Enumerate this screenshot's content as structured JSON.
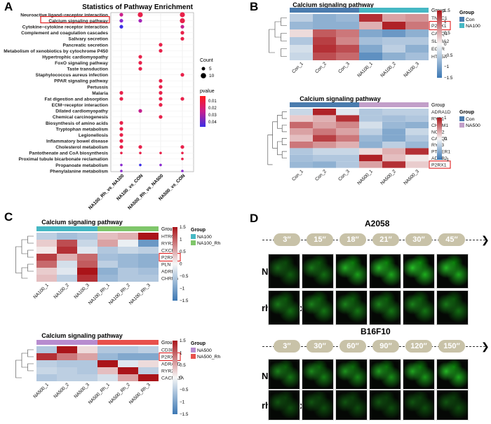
{
  "panels": {
    "A": "A",
    "B": "B",
    "C": "C",
    "D": "D"
  },
  "panelA": {
    "title": "Statistics of Pathway Enrichment",
    "pathways": [
      "Neuroactive ligand−receptor interaction",
      "Calcium signaling pathway",
      "Cytokine−cytokine receptor interaction",
      "Complement and coagulation cascades",
      "Salivary secretion",
      "Pancreatic secretion",
      "Metabolism of xenobiotics by cytochrome P450",
      "Hypertrophic cardiomyopathy",
      "FoxO signaling pathway",
      "Taste transduction",
      "Staphylococcus aureus infection",
      "PPAR signaling pathway",
      "Pertussis",
      "Malaria",
      "Fat digestion and absorption",
      "ECM−receptor interaction",
      "Dilated cardiomyopathy",
      "Chemical carcinogenesis",
      "Biosynthesis of amino acids",
      "Tryptophan metabolism",
      "Legionellosis",
      "Inflammatory bowel disease",
      "Cholesterol metabolism",
      "Pantothenate and CoA biosynthesis",
      "Proximal tubule bicarbonate reclamation",
      "Propanoate metabolism",
      "Phenylalanine metabolism"
    ],
    "comparisons": [
      "NA100_Rh_vs_NA100",
      "NA100_vs_CON",
      "NA500_Rh_vs_NA500",
      "NA500_vs_CON"
    ],
    "dots": [
      [
        0,
        0,
        1,
        "#cc1f8a"
      ],
      [
        0,
        1,
        2,
        "#e8214a"
      ],
      [
        0,
        3,
        2,
        "#e8214a"
      ],
      [
        1,
        0,
        1,
        "#8a2ad0"
      ],
      [
        1,
        1,
        1,
        "#a524b8"
      ],
      [
        1,
        3,
        2,
        "#e8214a"
      ],
      [
        2,
        0,
        1,
        "#3b2ee6"
      ],
      [
        2,
        3,
        1,
        "#c41f8f"
      ],
      [
        3,
        3,
        1,
        "#e8214a"
      ],
      [
        4,
        3,
        1,
        "#e8214a"
      ],
      [
        5,
        2,
        1,
        "#e8214a"
      ],
      [
        6,
        2,
        1,
        "#e8214a"
      ],
      [
        7,
        1,
        1,
        "#e8214a"
      ],
      [
        8,
        1,
        1,
        "#e8214a"
      ],
      [
        9,
        1,
        1,
        "#e8214a"
      ],
      [
        10,
        3,
        1,
        "#e8214a"
      ],
      [
        11,
        2,
        1,
        "#e8214a"
      ],
      [
        12,
        2,
        1,
        "#e8214a"
      ],
      [
        13,
        0,
        1,
        "#e8214a"
      ],
      [
        13,
        2,
        1,
        "#e8214a"
      ],
      [
        14,
        0,
        1,
        "#e8214a"
      ],
      [
        14,
        2,
        1,
        "#e8214a"
      ],
      [
        14,
        3,
        1,
        "#e8214a"
      ],
      [
        15,
        2,
        1,
        "#e8214a"
      ],
      [
        16,
        1,
        1,
        "#c41f8f"
      ],
      [
        17,
        2,
        1,
        "#e8214a"
      ],
      [
        18,
        0,
        1,
        "#e8214a"
      ],
      [
        19,
        0,
        1,
        "#e8214a"
      ],
      [
        20,
        0,
        1,
        "#e8214a"
      ],
      [
        21,
        0,
        1,
        "#e8214a"
      ],
      [
        22,
        0,
        1,
        "#e8214a"
      ],
      [
        22,
        1,
        1,
        "#e8214a"
      ],
      [
        22,
        3,
        1,
        "#e8214a"
      ],
      [
        23,
        0,
        0,
        "#e8214a"
      ],
      [
        23,
        1,
        0,
        "#e8214a"
      ],
      [
        23,
        2,
        0,
        "#e8214a"
      ],
      [
        23,
        3,
        0,
        "#e8214a"
      ],
      [
        24,
        3,
        0,
        "#e8214a"
      ],
      [
        25,
        0,
        0,
        "#8a2ad0"
      ],
      [
        25,
        1,
        0,
        "#3b2ee6"
      ],
      [
        25,
        2,
        0,
        "#8a2ad0"
      ],
      [
        26,
        0,
        0,
        "#8a2ad0"
      ],
      [
        26,
        3,
        0,
        "#8a2ad0"
      ]
    ],
    "legend": {
      "count_title": "Count",
      "count_values": [
        "5",
        "10"
      ],
      "pvalue_title": "pvalue",
      "pvalue_ticks": [
        "0.01",
        "0.02",
        "0.03",
        "0.04"
      ]
    }
  },
  "panelB1": {
    "title": "Calcium signaling pathway",
    "rows": [
      "TNNC1",
      "P2RX1",
      "CASQ1",
      "SLC8A2",
      "EGFR",
      "HTR5A"
    ],
    "cols": [
      "Con_1",
      "Con_2",
      "Con_3",
      "NA100_1",
      "NA100_2",
      "NA100_3"
    ],
    "values": [
      [
        -0.5,
        -0.9,
        -0.8,
        1.4,
        0.6,
        0.7
      ],
      [
        -0.8,
        -0.9,
        -0.9,
        0.5,
        1.5,
        0.9
      ],
      [
        0.2,
        1.1,
        0.9,
        -1.0,
        -1.2,
        -0.9
      ],
      [
        -0.6,
        1.3,
        0.8,
        -0.7,
        -0.6,
        -0.6
      ],
      [
        -0.3,
        1.4,
        1.2,
        -1.0,
        -0.5,
        -0.9
      ],
      [
        -0.4,
        1.2,
        1.0,
        -1.3,
        -0.9,
        -0.7
      ]
    ],
    "group_title": "Group",
    "groups": [
      "Con",
      "NA100"
    ],
    "group_colors": [
      "#4b7cae",
      "#46b8c4"
    ],
    "scale": [
      "1.5",
      "1",
      "0.5",
      "0",
      "−0.5",
      "−1",
      "−1.5"
    ]
  },
  "panelB2": {
    "title": "Calcium signaling pathway",
    "rows": [
      "ADRA1D",
      "RYR1",
      "CHRM1",
      "NOS2",
      "CASQ1",
      "RYR3",
      "PTGER1",
      "ADRB2",
      "P2RX1"
    ],
    "cols": [
      "Con_1",
      "Con_2",
      "Con_3",
      "NA500_1",
      "NA500_2",
      "NA500_3"
    ],
    "values": [
      [
        -0.4,
        1.5,
        -0.2,
        -0.6,
        -0.5,
        -0.5
      ],
      [
        0.3,
        0.5,
        1.4,
        -0.6,
        -0.7,
        -0.6
      ],
      [
        1.0,
        0.6,
        0.8,
        -0.3,
        -0.8,
        -0.9
      ],
      [
        0.6,
        0.9,
        0.6,
        -0.5,
        -1.0,
        -0.4
      ],
      [
        0.4,
        1.3,
        0.9,
        -0.8,
        -1.0,
        -0.6
      ],
      [
        0.9,
        0.7,
        0.5,
        -0.9,
        -0.5,
        -0.8
      ],
      [
        -0.6,
        -0.4,
        -0.4,
        0.2,
        0.5,
        1.4
      ],
      [
        -0.7,
        -0.6,
        -0.6,
        1.5,
        0.4,
        0.1
      ],
      [
        -0.8,
        -0.9,
        -0.6,
        0.6,
        1.4,
        0.3
      ]
    ],
    "group_title": "Group",
    "groups": [
      "Con",
      "NA500"
    ],
    "group_colors": [
      "#4b7cae",
      "#c29fc9"
    ],
    "scale": [
      "1",
      "0",
      "−1"
    ]
  },
  "panelC1": {
    "title": "Calcium signaling pathway",
    "rows": [
      "HTR6",
      "RYR2",
      "CXCR4",
      "P2RX1",
      "PLN",
      "ADRB3",
      "CHRM5"
    ],
    "cols": [
      "NA100_1",
      "NA100_2",
      "NA100_3",
      "NA100_Rh_1",
      "NA100_Rh_2",
      "NA100_Rh_3"
    ],
    "values": [
      [
        -0.5,
        -0.7,
        -0.6,
        0.4,
        0.5,
        1.6
      ],
      [
        0.3,
        1.2,
        -0.4,
        0.6,
        -0.1,
        -1.2
      ],
      [
        0.1,
        1.4,
        -0.2,
        -0.6,
        -0.4,
        -0.5
      ],
      [
        1.3,
        0.5,
        1.0,
        -0.7,
        -0.8,
        -0.9
      ],
      [
        1.0,
        -0.3,
        1.1,
        -0.5,
        -0.8,
        -0.9
      ],
      [
        0.3,
        -0.2,
        1.6,
        -0.9,
        -0.6,
        -0.7
      ],
      [
        0.4,
        -0.5,
        1.4,
        -0.8,
        -0.6,
        -0.6
      ]
    ],
    "group_title": "Group",
    "groups": [
      "NA100",
      "NA100_Rh"
    ],
    "group_colors": [
      "#46b8c4",
      "#7fc66a"
    ],
    "scale": [
      "1.5",
      "1",
      "0.5",
      "0",
      "−0.5",
      "−1",
      "−1.5"
    ]
  },
  "panelC2": {
    "title": "Calcium signaling pathway",
    "rows": [
      "CD38",
      "P2RX1",
      "ADRA1D",
      "RYR2",
      "CACNA1A"
    ],
    "cols": [
      "NA500_1",
      "NA500_2",
      "NA500_3",
      "NA500_Rh_1",
      "NA500_Rh_2",
      "NA500_Rh_3"
    ],
    "values": [
      [
        -0.6,
        1.8,
        0.2,
        -0.6,
        -0.6,
        -0.5
      ],
      [
        1.4,
        0.9,
        0.6,
        -0.8,
        -1.0,
        -1.0
      ],
      [
        -0.5,
        -0.6,
        -0.6,
        1.7,
        -0.2,
        0.2
      ],
      [
        -0.4,
        -0.5,
        -0.6,
        0.4,
        1.8,
        -0.5
      ],
      [
        -0.6,
        -0.5,
        -0.5,
        -0.3,
        0.6,
        1.6
      ]
    ],
    "group_title": "Group",
    "groups": [
      "NA500",
      "NA500_Rh"
    ],
    "group_colors": [
      "#b78ccf",
      "#e8514c"
    ],
    "scale": [
      "1.5",
      "1",
      "0.5",
      "0",
      "−0.5",
      "−1",
      "−1.5"
    ]
  },
  "panelD": {
    "top_title": "A2058",
    "top_times": [
      "3″",
      "15″",
      "18″",
      "21″",
      "30″",
      "45″"
    ],
    "bottom_title": "B16F10",
    "bottom_times": [
      "3″",
      "30″",
      "60″",
      "90″",
      "120″",
      "150″"
    ],
    "row_labels": [
      "NA",
      "rhynchophylline"
    ],
    "top_brightness": [
      [
        0.35,
        0.45,
        0.75,
        0.8,
        0.85,
        0.8
      ],
      [
        0.45,
        0.5,
        0.5,
        0.5,
        0.5,
        0.45
      ]
    ],
    "bottom_brightness": [
      [
        0.5,
        0.55,
        0.6,
        0.65,
        0.7,
        0.8
      ],
      [
        0.25,
        0.25,
        0.25,
        0.25,
        0.25,
        0.25
      ]
    ]
  }
}
